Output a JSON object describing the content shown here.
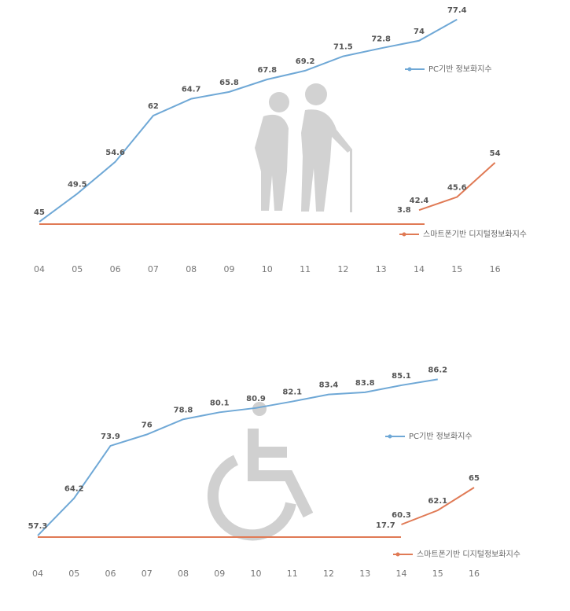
{
  "chart_data": [
    {
      "type": "line",
      "categories": [
        "04",
        "05",
        "06",
        "07",
        "08",
        "09",
        "10",
        "11",
        "12",
        "13",
        "14",
        "15",
        "16"
      ],
      "ylim": [
        44,
        78
      ],
      "y2lim": [
        38,
        90
      ],
      "annotations": [
        "3.8"
      ],
      "series": [
        {
          "name": "PC기반 정보화지수",
          "color": "#6fa8d6",
          "values": [
            45.0,
            49.5,
            54.6,
            62.0,
            64.7,
            65.8,
            67.8,
            69.2,
            71.5,
            72.8,
            74.0,
            77.4,
            null
          ]
        },
        {
          "name": "스마트폰기반 디지털정보화지수",
          "color": "#e07a55",
          "axis": "y2",
          "values": [
            null,
            null,
            null,
            null,
            null,
            null,
            null,
            null,
            null,
            null,
            42.4,
            45.6,
            54.0
          ]
        }
      ]
    },
    {
      "type": "line",
      "categories": [
        "04",
        "05",
        "06",
        "07",
        "08",
        "09",
        "10",
        "11",
        "12",
        "13",
        "14",
        "15",
        "16"
      ],
      "ylim": [
        56,
        88
      ],
      "y2lim": [
        58,
        80
      ],
      "annotations": [
        "17.7"
      ],
      "series": [
        {
          "name": "PC기반 정보화지수",
          "color": "#6fa8d6",
          "values": [
            57.3,
            64.2,
            73.9,
            76,
            78.8,
            80.1,
            80.9,
            82.1,
            83.4,
            83.8,
            85.1,
            86.2,
            null
          ]
        },
        {
          "name": "스마트폰기반 디지털정보화지수",
          "color": "#e07a55",
          "axis": "y2",
          "values": [
            null,
            null,
            null,
            null,
            null,
            null,
            null,
            null,
            null,
            null,
            60.3,
            62.1,
            65.0
          ]
        }
      ]
    }
  ]
}
